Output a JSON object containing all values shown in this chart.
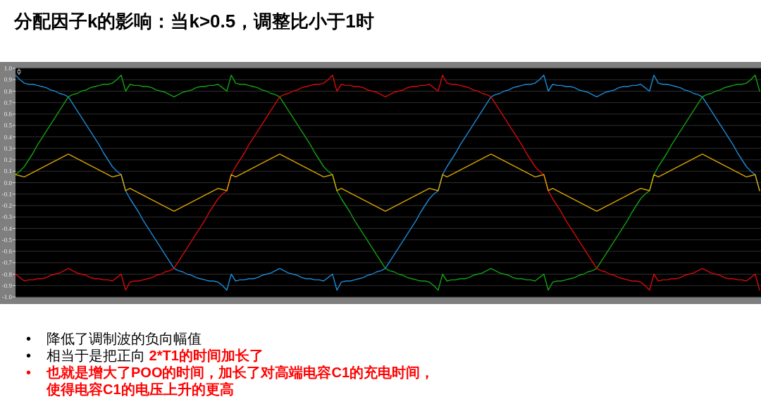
{
  "chart_data": {
    "type": "line",
    "title": "分配因子k的影响：当k>0.5，调整比小于1时",
    "annotations": [
      "• 降低了调制波的负向幅值",
      "• 相当于是把正向",
      "2*T1的时间加长了",
      "• 也就是增大了POO的时间，加长了对高端电容C1的充电时间，使得电容C1的电压上升的更高"
    ],
    "categories": [
      null,
      null,
      null,
      null,
      null,
      null,
      null,
      null,
      null,
      null,
      null,
      null,
      null,
      null,
      null,
      null,
      null,
      null,
      null,
      null,
      null,
      null,
      null,
      null,
      null,
      null,
      null,
      null,
      null,
      null,
      null,
      null,
      null,
      null,
      null,
      null,
      null,
      null,
      null,
      null,
      null,
      null,
      null,
      null,
      null,
      null,
      null,
      null,
      null,
      null,
      null,
      null,
      null,
      null,
      null,
      null,
      null,
      null,
      null,
      null,
      null,
      null,
      null,
      null,
      null,
      null,
      null,
      null,
      null,
      null,
      null,
      null,
      null,
      null,
      null,
      null,
      null,
      null,
      null,
      null,
      null,
      null,
      null,
      null,
      null,
      null,
      null,
      null,
      null,
      null,
      null,
      null,
      null,
      null,
      null,
      null,
      null,
      null,
      null,
      null,
      null,
      null,
      null,
      null,
      null,
      null,
      null,
      null,
      null,
      null,
      null,
      null,
      null,
      null,
      null,
      null,
      null,
      null,
      null,
      null,
      null,
      null,
      null,
      null,
      null,
      null,
      null,
      null,
      null,
      null,
      null,
      null,
      null,
      null,
      null,
      null,
      null,
      null,
      null,
      null,
      null,
      null,
      null,
      null,
      null,
      null,
      null,
      null,
      null,
      null,
      null,
      null,
      null,
      null,
      null,
      null,
      null,
      null,
      null,
      null,
      null,
      null,
      null,
      null,
      null,
      null,
      null,
      null,
      null,
      null
    ],
    "ylim": [
      -1,
      1
    ],
    "yticks": [
      {
        "value": 1,
        "label": "1.0"
      },
      0.9,
      0.8,
      0.7,
      0.6,
      0.5,
      0.4,
      0.3,
      0.2,
      0.1,
      {
        "value": 0,
        "label": "0.0"
      },
      -0.1,
      -0.2,
      -0.3,
      -0.4,
      -0.5,
      -0.6,
      -0.7,
      -0.8,
      -0.9,
      {
        "value": -1,
        "label": "-1.0"
      }
    ],
    "tick_labels": "y",
    "grid": "y",
    "series": [
      {
        "color": "#1c8ad6",
        "values": [
          0.94,
          0.9,
          0.87,
          0.86,
          0.86,
          0.85,
          0.84,
          0.83,
          0.81,
          0.8,
          0.78,
          0.77,
          0.75,
          0.69,
          0.63,
          0.57,
          0.51,
          0.45,
          0.39,
          0.33,
          0.26,
          0.2,
          0.14,
          0.1,
          0.07,
          -0.07,
          -0.14,
          -0.2,
          -0.26,
          -0.33,
          -0.39,
          -0.45,
          -0.51,
          -0.57,
          -0.63,
          -0.69,
          -0.75,
          -0.77,
          -0.78,
          -0.8,
          -0.81,
          -0.83,
          -0.84,
          -0.85,
          -0.86,
          -0.86,
          -0.87,
          -0.9,
          -0.94,
          -0.8,
          -0.86,
          -0.85,
          -0.85,
          -0.84,
          -0.84,
          -0.83,
          -0.81,
          -0.8,
          -0.79,
          -0.77,
          -0.75,
          -0.77,
          -0.79,
          -0.8,
          -0.81,
          -0.83,
          -0.84,
          -0.84,
          -0.85,
          -0.85,
          -0.86,
          -0.83,
          -0.8,
          -0.94,
          -0.87,
          -0.86,
          -0.86,
          -0.85,
          -0.84,
          -0.83,
          -0.81,
          -0.8,
          -0.78,
          -0.77,
          -0.75,
          -0.69,
          -0.63,
          -0.57,
          -0.51,
          -0.45,
          -0.39,
          -0.33,
          -0.26,
          -0.2,
          -0.14,
          -0.1,
          -0.07,
          0.07,
          0.14,
          0.2,
          0.26,
          0.33,
          0.39,
          0.45,
          0.51,
          0.57,
          0.63,
          0.69,
          0.75,
          0.77,
          0.78,
          0.8,
          0.81,
          0.83,
          0.84,
          0.85,
          0.86,
          0.86,
          0.87,
          0.9,
          0.94,
          0.8,
          0.86,
          0.85,
          0.85,
          0.84,
          0.84,
          0.83,
          0.81,
          0.8,
          0.79,
          0.77,
          0.75,
          0.77,
          0.79,
          0.8,
          0.81,
          0.83,
          0.84,
          0.84,
          0.85,
          0.85,
          0.86,
          0.83,
          0.8,
          0.94,
          0.87,
          0.86,
          0.86,
          0.85,
          0.84,
          0.83,
          0.81,
          0.8,
          0.78,
          0.77,
          0.75,
          0.69,
          0.63,
          0.57,
          0.51,
          0.45,
          0.39,
          0.33,
          0.26,
          0.2,
          0.14,
          0.1,
          0.07,
          -0.07
        ]
      },
      {
        "color": "#14a014",
        "values": [
          0.07,
          0.1,
          0.14,
          0.2,
          0.26,
          0.33,
          0.39,
          0.45,
          0.51,
          0.57,
          0.63,
          0.69,
          0.75,
          0.77,
          0.78,
          0.8,
          0.81,
          0.83,
          0.84,
          0.85,
          0.86,
          0.86,
          0.87,
          0.9,
          0.94,
          0.8,
          0.86,
          0.85,
          0.85,
          0.84,
          0.84,
          0.83,
          0.81,
          0.8,
          0.79,
          0.77,
          0.75,
          0.77,
          0.79,
          0.8,
          0.81,
          0.83,
          0.84,
          0.84,
          0.85,
          0.85,
          0.86,
          0.83,
          0.8,
          0.94,
          0.87,
          0.86,
          0.86,
          0.85,
          0.84,
          0.83,
          0.81,
          0.8,
          0.78,
          0.77,
          0.75,
          0.69,
          0.63,
          0.57,
          0.51,
          0.45,
          0.39,
          0.33,
          0.26,
          0.2,
          0.14,
          0.1,
          0.07,
          -0.07,
          -0.14,
          -0.2,
          -0.26,
          -0.33,
          -0.39,
          -0.45,
          -0.51,
          -0.57,
          -0.63,
          -0.69,
          -0.75,
          -0.77,
          -0.78,
          -0.8,
          -0.81,
          -0.83,
          -0.84,
          -0.85,
          -0.86,
          -0.86,
          -0.87,
          -0.9,
          -0.94,
          -0.8,
          -0.86,
          -0.85,
          -0.85,
          -0.84,
          -0.84,
          -0.83,
          -0.81,
          -0.8,
          -0.79,
          -0.77,
          -0.75,
          -0.77,
          -0.79,
          -0.8,
          -0.81,
          -0.83,
          -0.84,
          -0.84,
          -0.85,
          -0.85,
          -0.86,
          -0.83,
          -0.8,
          -0.94,
          -0.87,
          -0.86,
          -0.86,
          -0.85,
          -0.84,
          -0.83,
          -0.81,
          -0.8,
          -0.78,
          -0.77,
          -0.75,
          -0.69,
          -0.63,
          -0.57,
          -0.51,
          -0.45,
          -0.39,
          -0.33,
          -0.26,
          -0.2,
          -0.14,
          -0.1,
          -0.07,
          0.07,
          0.14,
          0.2,
          0.26,
          0.33,
          0.39,
          0.45,
          0.51,
          0.57,
          0.63,
          0.69,
          0.75,
          0.77,
          0.78,
          0.8,
          0.81,
          0.83,
          0.84,
          0.85,
          0.86,
          0.86,
          0.87,
          0.9,
          0.94,
          0.8
        ]
      },
      {
        "color": "#d40b0b",
        "values": [
          -0.8,
          -0.83,
          -0.86,
          -0.85,
          -0.85,
          -0.84,
          -0.84,
          -0.83,
          -0.81,
          -0.8,
          -0.79,
          -0.77,
          -0.75,
          -0.77,
          -0.79,
          -0.8,
          -0.81,
          -0.83,
          -0.84,
          -0.84,
          -0.85,
          -0.85,
          -0.86,
          -0.83,
          -0.8,
          -0.94,
          -0.87,
          -0.86,
          -0.86,
          -0.85,
          -0.84,
          -0.83,
          -0.81,
          -0.8,
          -0.78,
          -0.77,
          -0.75,
          -0.69,
          -0.63,
          -0.57,
          -0.51,
          -0.45,
          -0.39,
          -0.33,
          -0.26,
          -0.2,
          -0.14,
          -0.1,
          -0.07,
          0.07,
          0.14,
          0.2,
          0.26,
          0.33,
          0.39,
          0.45,
          0.51,
          0.57,
          0.63,
          0.69,
          0.75,
          0.77,
          0.78,
          0.8,
          0.81,
          0.83,
          0.84,
          0.85,
          0.86,
          0.86,
          0.87,
          0.9,
          0.94,
          0.8,
          0.86,
          0.85,
          0.85,
          0.84,
          0.84,
          0.83,
          0.81,
          0.8,
          0.79,
          0.77,
          0.75,
          0.77,
          0.79,
          0.8,
          0.81,
          0.83,
          0.84,
          0.84,
          0.85,
          0.85,
          0.86,
          0.83,
          0.8,
          0.94,
          0.87,
          0.86,
          0.86,
          0.85,
          0.84,
          0.83,
          0.81,
          0.8,
          0.78,
          0.77,
          0.75,
          0.69,
          0.63,
          0.57,
          0.51,
          0.45,
          0.39,
          0.33,
          0.26,
          0.2,
          0.14,
          0.1,
          0.07,
          -0.07,
          -0.14,
          -0.2,
          -0.26,
          -0.33,
          -0.39,
          -0.45,
          -0.51,
          -0.57,
          -0.63,
          -0.69,
          -0.75,
          -0.77,
          -0.78,
          -0.8,
          -0.81,
          -0.83,
          -0.84,
          -0.85,
          -0.86,
          -0.86,
          -0.87,
          -0.9,
          -0.94,
          -0.8,
          -0.86,
          -0.85,
          -0.85,
          -0.84,
          -0.84,
          -0.83,
          -0.81,
          -0.8,
          -0.79,
          -0.77,
          -0.75,
          -0.77,
          -0.79,
          -0.8,
          -0.81,
          -0.83,
          -0.84,
          -0.84,
          -0.85,
          -0.85,
          -0.86,
          -0.83,
          -0.8,
          -0.94
        ]
      },
      {
        "color": "#d9a400",
        "values": [
          0.07,
          0.06,
          0.05,
          0.07,
          0.09,
          0.11,
          0.13,
          0.15,
          0.17,
          0.19,
          0.21,
          0.23,
          0.25,
          0.23,
          0.21,
          0.19,
          0.17,
          0.15,
          0.13,
          0.11,
          0.09,
          0.07,
          0.05,
          0.06,
          0.07,
          -0.07,
          -0.05,
          -0.07,
          -0.09,
          -0.11,
          -0.13,
          -0.15,
          -0.17,
          -0.19,
          -0.21,
          -0.23,
          -0.25,
          -0.23,
          -0.21,
          -0.19,
          -0.17,
          -0.15,
          -0.13,
          -0.11,
          -0.09,
          -0.07,
          -0.05,
          -0.06,
          -0.07,
          0.07,
          0.05,
          0.07,
          0.09,
          0.11,
          0.13,
          0.15,
          0.17,
          0.19,
          0.21,
          0.23,
          0.25,
          0.23,
          0.21,
          0.19,
          0.17,
          0.15,
          0.13,
          0.11,
          0.09,
          0.07,
          0.05,
          0.06,
          0.07,
          -0.07,
          -0.05,
          -0.07,
          -0.09,
          -0.11,
          -0.13,
          -0.15,
          -0.17,
          -0.19,
          -0.21,
          -0.23,
          -0.25,
          -0.23,
          -0.21,
          -0.19,
          -0.17,
          -0.15,
          -0.13,
          -0.11,
          -0.09,
          -0.07,
          -0.05,
          -0.06,
          -0.07,
          0.07,
          0.05,
          0.07,
          0.09,
          0.11,
          0.13,
          0.15,
          0.17,
          0.19,
          0.21,
          0.23,
          0.25,
          0.23,
          0.21,
          0.19,
          0.17,
          0.15,
          0.13,
          0.11,
          0.09,
          0.07,
          0.05,
          0.06,
          0.07,
          -0.07,
          -0.05,
          -0.07,
          -0.09,
          -0.11,
          -0.13,
          -0.15,
          -0.17,
          -0.19,
          -0.21,
          -0.23,
          -0.25,
          -0.23,
          -0.21,
          -0.19,
          -0.17,
          -0.15,
          -0.13,
          -0.11,
          -0.09,
          -0.07,
          -0.05,
          -0.06,
          -0.07,
          0.07,
          0.05,
          0.07,
          0.09,
          0.11,
          0.13,
          0.15,
          0.17,
          0.19,
          0.21,
          0.23,
          0.25,
          0.23,
          0.21,
          0.19,
          0.17,
          0.15,
          0.13,
          0.11,
          0.09,
          0.07,
          0.05,
          0.06,
          0.07,
          -0.07
        ]
      }
    ]
  }
}
